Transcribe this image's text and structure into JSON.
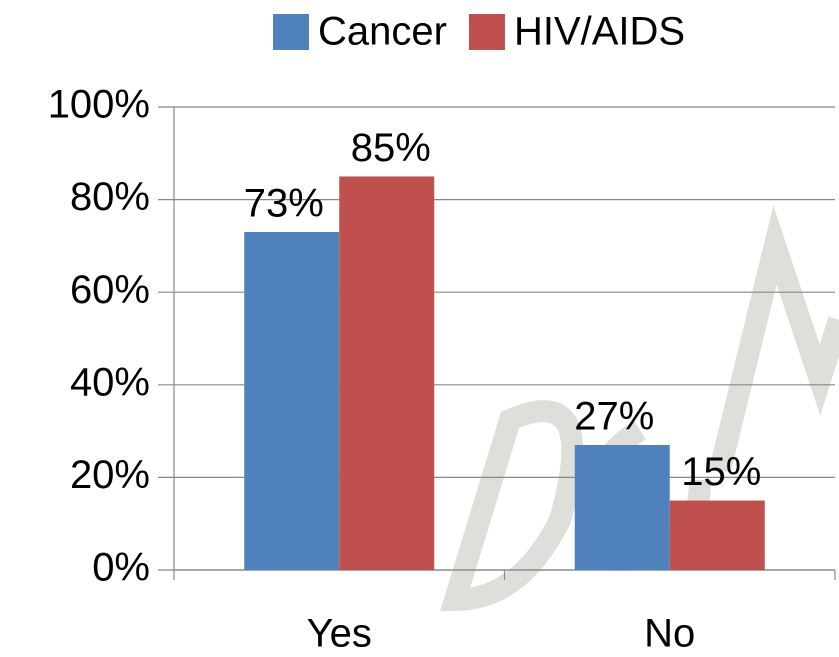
{
  "chart_data": {
    "type": "bar",
    "categories": [
      "Yes",
      "No"
    ],
    "series": [
      {
        "name": "Cancer",
        "color": "#4f81bd",
        "values": [
          73,
          27
        ],
        "value_labels": [
          "73%",
          "27%"
        ]
      },
      {
        "name": "HIV/AIDS",
        "color": "#c0504d",
        "values": [
          85,
          15
        ],
        "value_labels": [
          "85%",
          "15%"
        ]
      }
    ],
    "ylim": [
      0,
      100
    ],
    "yticks": [
      {
        "value": 0,
        "label": "0%"
      },
      {
        "value": 20,
        "label": "20%"
      },
      {
        "value": 40,
        "label": "40%"
      },
      {
        "value": 60,
        "label": "60%"
      },
      {
        "value": 80,
        "label": "80%"
      },
      {
        "value": 100,
        "label": "100%"
      }
    ],
    "grid": true,
    "legend": "top"
  }
}
